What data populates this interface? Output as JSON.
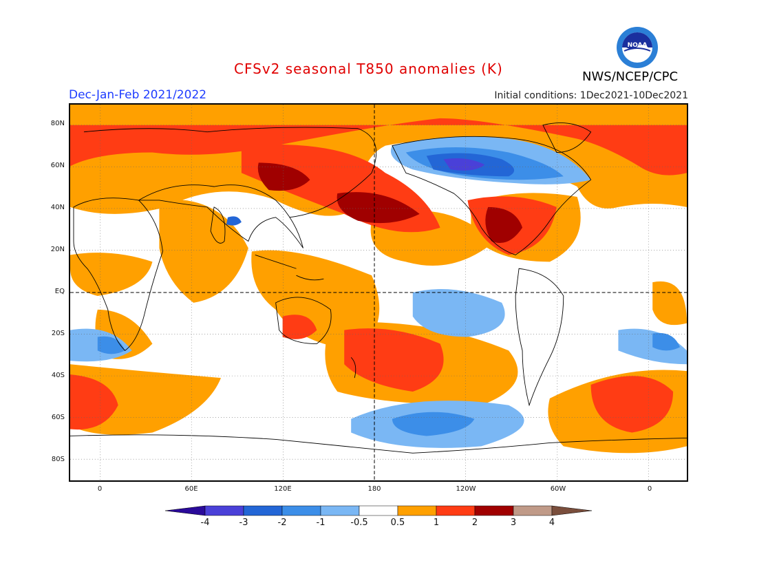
{
  "header": {
    "title": "CFSv2 seasonal T850 anomalies (K)",
    "period": "Dec-Jan-Feb 2021/2022",
    "initial_conditions": "Initial conditions: 1Dec2021-10Dec2021",
    "agency": "NWS/NCEP/CPC",
    "logo_icon": "noaa-logo-icon"
  },
  "map": {
    "projection": "equirectangular",
    "lat_range": [
      -90,
      90
    ],
    "lon_labels": [
      "0",
      "60E",
      "120E",
      "180",
      "120W",
      "60W",
      "0"
    ],
    "lat_labels": [
      "80N",
      "60N",
      "40N",
      "20N",
      "EQ",
      "20S",
      "40S",
      "60S",
      "80S"
    ],
    "grid": "dotted"
  },
  "colorbar": {
    "labels": [
      "-4",
      "-3",
      "-2",
      "-1",
      "-0.5",
      "0.5",
      "1",
      "2",
      "3",
      "4"
    ],
    "colors": [
      "#2a0a9a",
      "#4a40d8",
      "#2366d6",
      "#3c8ee8",
      "#7ab7f4",
      "#ffffff",
      "#ffa000",
      "#ff3c14",
      "#a00000",
      "#c09a88",
      "#7a4e3c"
    ]
  },
  "anomaly_regions": [
    {
      "name": "Arctic / N Eurasia warm",
      "value": 1.5
    },
    {
      "name": "East Asia / NW Pacific warm",
      "value": 2.5
    },
    {
      "name": "Alaska / N Canada cold",
      "value": -2.5
    },
    {
      "name": "SE United States warm",
      "value": 2.5
    },
    {
      "name": "Central tropical Pacific cold",
      "value": -0.8
    },
    {
      "name": "South Pacific warm",
      "value": 1.5
    },
    {
      "name": "Southern Ocean cold",
      "value": -1.5
    },
    {
      "name": "South Atlantic warm",
      "value": 1.5
    }
  ]
}
